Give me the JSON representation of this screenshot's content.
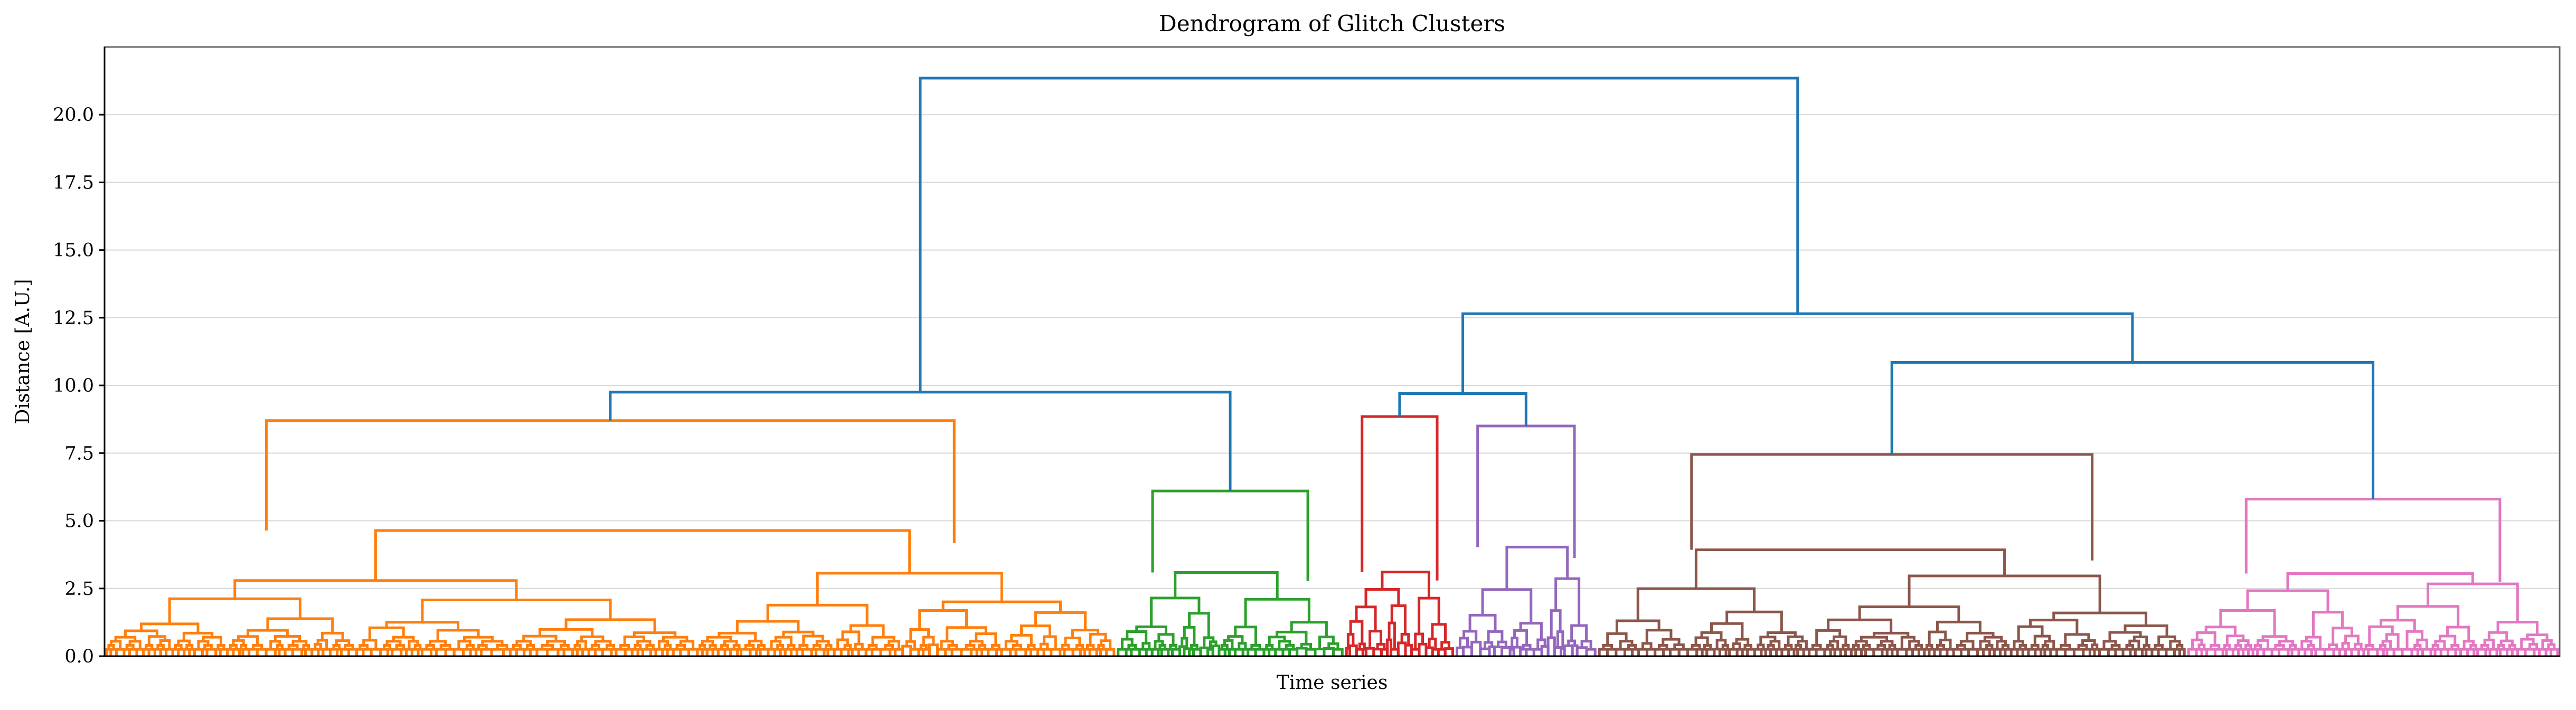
{
  "chart_data": {
    "type": "dendrogram",
    "title": "Dendrogram of Glitch Clusters",
    "xlabel": "Time series",
    "ylabel": "Distance [A.U.]",
    "ylim": [
      0,
      22.5
    ],
    "yticks": [
      "0.0",
      "2.5",
      "5.0",
      "7.5",
      "10.0",
      "12.5",
      "15.0",
      "17.5",
      "20.0"
    ],
    "grid": "horizontal",
    "colors": {
      "root": "#1f77b4",
      "orange": "#ff7f0e",
      "green": "#2ca02c",
      "red": "#d62728",
      "purple": "#9467bd",
      "brown": "#8c564b",
      "pink": "#e377c2"
    },
    "clusters": [
      {
        "name": "orange",
        "leaf_start": 0,
        "leaf_end": 0.412,
        "height": 8.7
      },
      {
        "name": "green",
        "leaf_start": 0.412,
        "leaf_end": 0.505,
        "height": 6.1
      },
      {
        "name": "red",
        "leaf_start": 0.505,
        "leaf_end": 0.55,
        "height": 8.85
      },
      {
        "name": "purple",
        "leaf_start": 0.55,
        "leaf_end": 0.608,
        "height": 8.5
      },
      {
        "name": "brown",
        "leaf_start": 0.608,
        "leaf_end": 0.848,
        "height": 7.45
      },
      {
        "name": "pink",
        "leaf_start": 0.848,
        "leaf_end": 1.0,
        "height": 5.8
      }
    ],
    "links": [
      {
        "members": [
          "orange",
          "green"
        ],
        "height": 9.75
      },
      {
        "members": [
          "red",
          "purple"
        ],
        "height": 9.7
      },
      {
        "members": [
          "brown",
          "pink"
        ],
        "height": 10.85
      },
      {
        "members": [
          "red+purple",
          "brown+pink"
        ],
        "height": 12.65
      },
      {
        "members": [
          "orange+green",
          "red+purple+brown+pink"
        ],
        "height": 21.35
      }
    ]
  }
}
